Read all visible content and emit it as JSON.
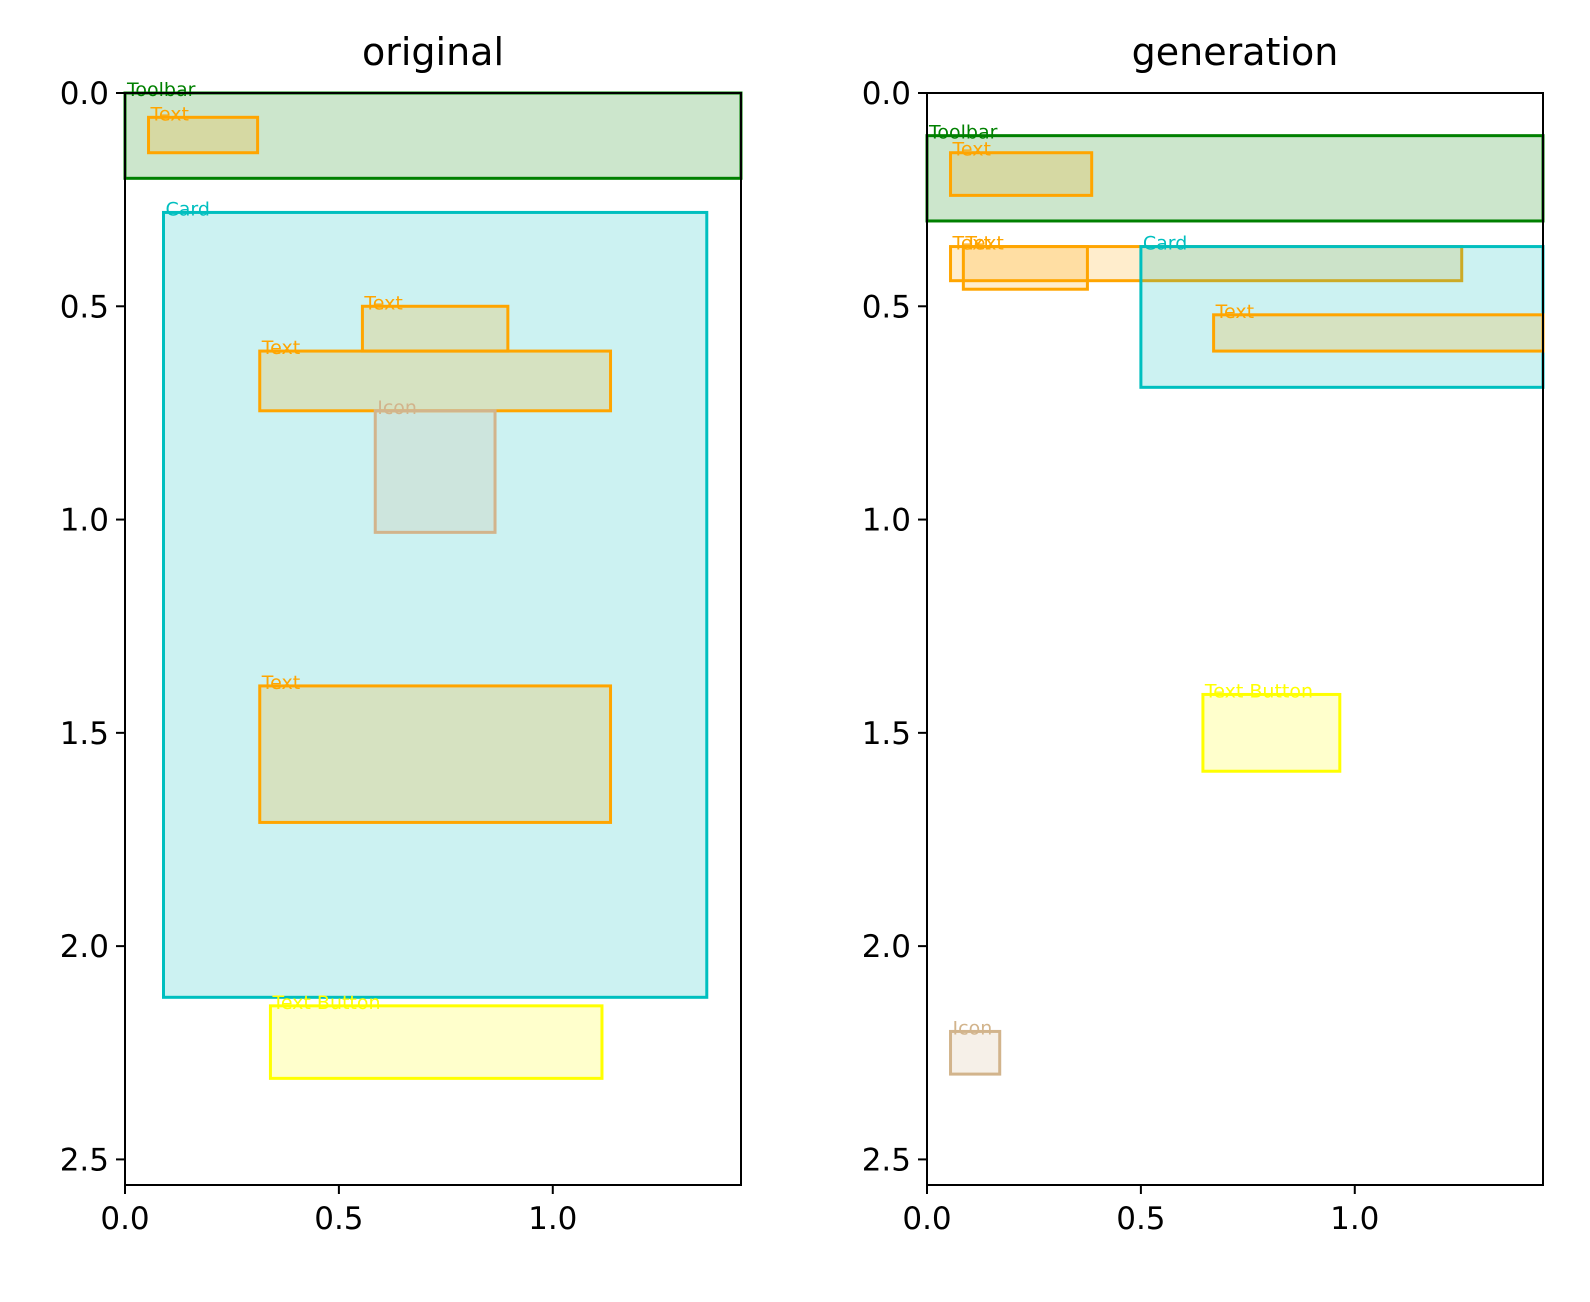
{
  "chart_data": [
    {
      "type": "bbox-layout",
      "title": "original",
      "xlim": [
        0,
        1.44
      ],
      "ylim": [
        2.56,
        0
      ],
      "xticks": [
        "0.0",
        "0.5",
        "1.0"
      ],
      "yticks": [
        "0.0",
        "0.5",
        "1.0",
        "1.5",
        "2.0",
        "2.5"
      ],
      "boxes": [
        {
          "label": "Toolbar",
          "x0": 0.0,
          "y0": 0.0,
          "x1": 1.44,
          "y1": 0.2,
          "color": "#008000",
          "lw": 3
        },
        {
          "label": "Text",
          "x0": 0.055,
          "y0": 0.057,
          "x1": 0.31,
          "y1": 0.14,
          "color": "#FFA500",
          "lw": 3
        },
        {
          "label": "Card",
          "x0": 0.09,
          "y0": 0.28,
          "x1": 1.36,
          "y1": 2.12,
          "color": "#00BFBF",
          "lw": 3
        },
        {
          "label": "Text",
          "x0": 0.555,
          "y0": 0.5,
          "x1": 0.895,
          "y1": 0.605,
          "color": "#FFA500",
          "lw": 3
        },
        {
          "label": "Text",
          "x0": 0.315,
          "y0": 0.605,
          "x1": 1.135,
          "y1": 0.745,
          "color": "#FFA500",
          "lw": 3
        },
        {
          "label": "Icon",
          "x0": 0.585,
          "y0": 0.745,
          "x1": 0.865,
          "y1": 1.03,
          "color": "#D2B48C",
          "lw": 3
        },
        {
          "label": "Text",
          "x0": 0.315,
          "y0": 1.39,
          "x1": 1.135,
          "y1": 1.71,
          "color": "#FFA500",
          "lw": 3
        },
        {
          "label": "Text Button",
          "x0": 0.34,
          "y0": 2.14,
          "x1": 1.115,
          "y1": 2.31,
          "color": "#FFFF00",
          "lw": 3
        }
      ]
    },
    {
      "type": "bbox-layout",
      "title": "generation",
      "xlim": [
        0,
        1.44
      ],
      "ylim": [
        2.56,
        0
      ],
      "xticks": [
        "0.0",
        "0.5",
        "1.0"
      ],
      "yticks": [
        "0.0",
        "0.5",
        "1.0",
        "1.5",
        "2.0",
        "2.5"
      ],
      "boxes": [
        {
          "label": "Toolbar",
          "x0": 0.0,
          "y0": 0.1,
          "x1": 1.44,
          "y1": 0.3,
          "color": "#008000",
          "lw": 3
        },
        {
          "label": "Text",
          "x0": 0.055,
          "y0": 0.14,
          "x1": 0.385,
          "y1": 0.24,
          "color": "#FFA500",
          "lw": 3
        },
        {
          "label": "Text",
          "x0": 0.055,
          "y0": 0.36,
          "x1": 1.25,
          "y1": 0.44,
          "color": "#FFA500",
          "lw": 3
        },
        {
          "label": "Text",
          "x0": 0.085,
          "y0": 0.36,
          "x1": 0.375,
          "y1": 0.46,
          "color": "#FFA500",
          "lw": 3
        },
        {
          "label": "Card",
          "x0": 0.5,
          "y0": 0.36,
          "x1": 1.44,
          "y1": 0.69,
          "color": "#00BFBF",
          "lw": 3
        },
        {
          "label": "Text",
          "x0": 0.67,
          "y0": 0.52,
          "x1": 1.44,
          "y1": 0.605,
          "color": "#FFA500",
          "lw": 3
        },
        {
          "label": "Text Button",
          "x0": 0.645,
          "y0": 1.41,
          "x1": 0.965,
          "y1": 1.59,
          "color": "#FFFF00",
          "lw": 3
        },
        {
          "label": "Icon",
          "x0": 0.055,
          "y0": 2.2,
          "x1": 0.17,
          "y1": 2.3,
          "color": "#D2B48C",
          "lw": 3
        }
      ]
    }
  ]
}
